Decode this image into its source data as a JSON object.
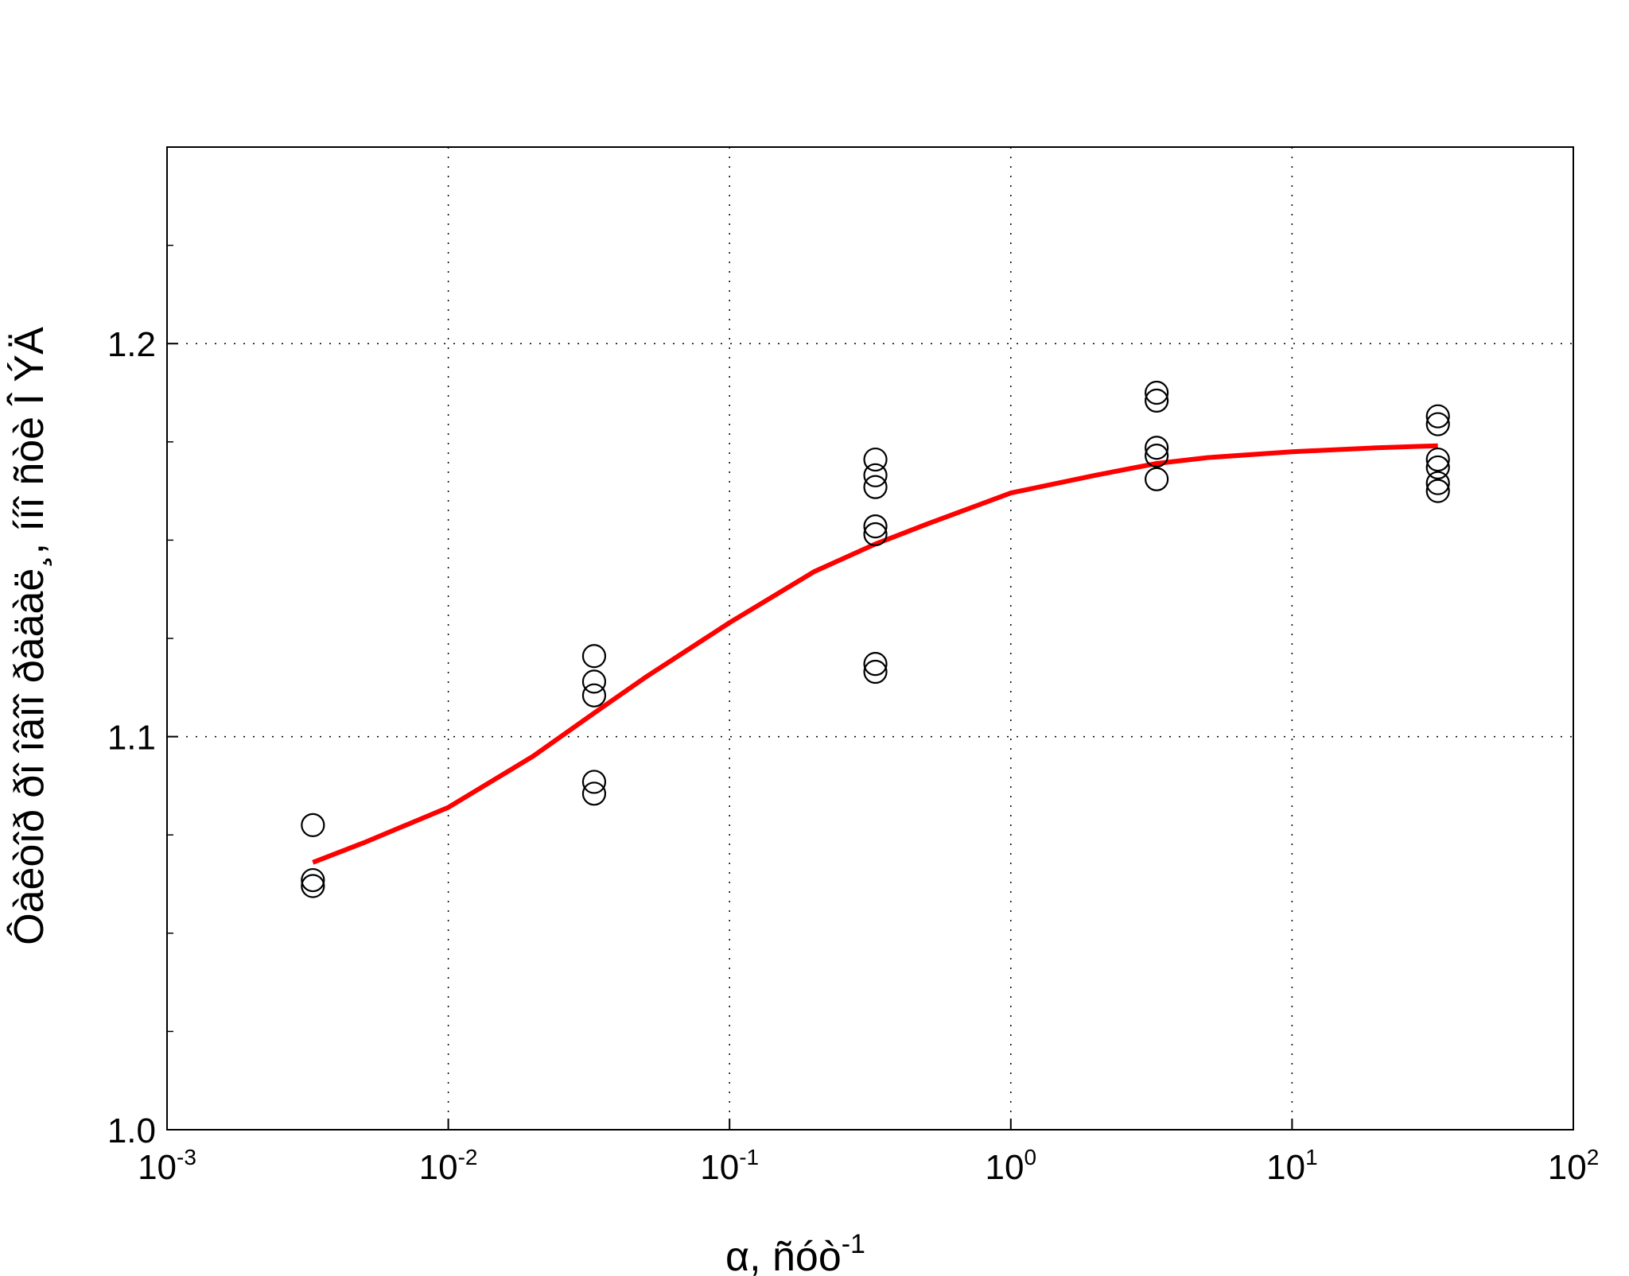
{
  "chart_data": {
    "type": "scatter",
    "title": "",
    "xlabel": "α, ñóò",
    "xlabel_superscript": "-1",
    "ylabel": "Ôàêòîð ðî îâîî ðàäàë¸, ííî ñòè Î ÝÄ",
    "x_scale": "log",
    "xlim": [
      0.001,
      100
    ],
    "ylim": [
      1.0,
      1.25
    ],
    "grid": true,
    "x_ticks": [
      {
        "value": 0.001,
        "base": "10",
        "exp": "-3"
      },
      {
        "value": 0.01,
        "base": "10",
        "exp": "-2"
      },
      {
        "value": 0.1,
        "base": "10",
        "exp": "-1"
      },
      {
        "value": 1,
        "base": "10",
        "exp": "0"
      },
      {
        "value": 10,
        "base": "10",
        "exp": "1"
      },
      {
        "value": 100,
        "base": "10",
        "exp": "2"
      }
    ],
    "y_ticks": [
      {
        "value": 1.0,
        "label": "1.0"
      },
      {
        "value": 1.1,
        "label": "1.1"
      },
      {
        "value": 1.2,
        "label": "1.2"
      }
    ],
    "series": [
      {
        "kind": "scatter",
        "marker": "open-circle",
        "color": "#000000",
        "points": [
          {
            "x": 0.0033,
            "y": 1.0775
          },
          {
            "x": 0.0033,
            "y": 1.0635
          },
          {
            "x": 0.0033,
            "y": 1.062
          },
          {
            "x": 0.033,
            "y": 1.1205
          },
          {
            "x": 0.033,
            "y": 1.114
          },
          {
            "x": 0.033,
            "y": 1.1105
          },
          {
            "x": 0.033,
            "y": 1.0885
          },
          {
            "x": 0.033,
            "y": 1.0855
          },
          {
            "x": 0.33,
            "y": 1.1705
          },
          {
            "x": 0.33,
            "y": 1.1665
          },
          {
            "x": 0.33,
            "y": 1.1635
          },
          {
            "x": 0.33,
            "y": 1.1535
          },
          {
            "x": 0.33,
            "y": 1.1515
          },
          {
            "x": 0.33,
            "y": 1.1185
          },
          {
            "x": 0.33,
            "y": 1.1165
          },
          {
            "x": 3.3,
            "y": 1.1875
          },
          {
            "x": 3.3,
            "y": 1.1855
          },
          {
            "x": 3.3,
            "y": 1.1735
          },
          {
            "x": 3.3,
            "y": 1.1715
          },
          {
            "x": 3.3,
            "y": 1.1655
          },
          {
            "x": 33,
            "y": 1.1815
          },
          {
            "x": 33,
            "y": 1.1795
          },
          {
            "x": 33,
            "y": 1.1705
          },
          {
            "x": 33,
            "y": 1.1685
          },
          {
            "x": 33,
            "y": 1.1645
          },
          {
            "x": 33,
            "y": 1.1625
          }
        ]
      },
      {
        "kind": "line",
        "color": "#ff0000",
        "points": [
          {
            "x": 0.0033,
            "y": 1.068
          },
          {
            "x": 0.005,
            "y": 1.073
          },
          {
            "x": 0.01,
            "y": 1.082
          },
          {
            "x": 0.02,
            "y": 1.095
          },
          {
            "x": 0.033,
            "y": 1.106
          },
          {
            "x": 0.05,
            "y": 1.115
          },
          {
            "x": 0.1,
            "y": 1.129
          },
          {
            "x": 0.2,
            "y": 1.142
          },
          {
            "x": 0.33,
            "y": 1.149
          },
          {
            "x": 0.5,
            "y": 1.154
          },
          {
            "x": 1,
            "y": 1.162
          },
          {
            "x": 2,
            "y": 1.1665
          },
          {
            "x": 3.3,
            "y": 1.1695
          },
          {
            "x": 5,
            "y": 1.171
          },
          {
            "x": 10,
            "y": 1.1725
          },
          {
            "x": 20,
            "y": 1.1735
          },
          {
            "x": 33,
            "y": 1.174
          }
        ]
      }
    ]
  }
}
